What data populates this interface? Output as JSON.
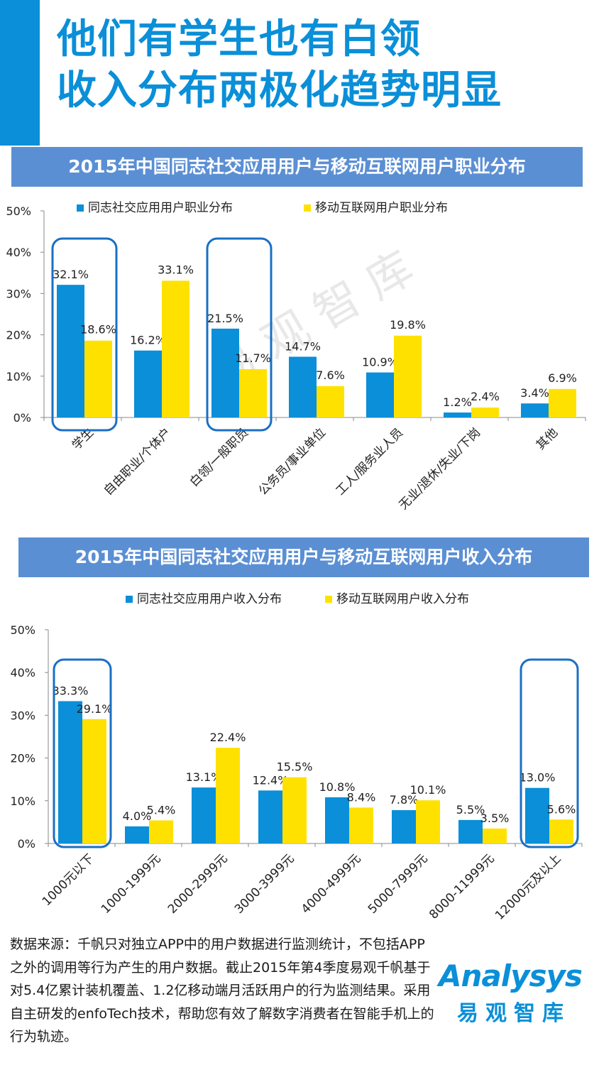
{
  "header": {
    "title_line1": "他们有学生也有白领",
    "title_line2": "收入分布两极化趋势明显",
    "title_color": "#0a8fd8",
    "accent_color": "#0a8fd8"
  },
  "colors": {
    "series_blue": "#0a8fd8",
    "series_yellow": "#ffe100",
    "banner_bg": "#5b8fd4",
    "highlight_box": "#1a6fc4",
    "watermark": "#e8e8e8"
  },
  "watermark": "易 观 智 库",
  "chart_data": [
    {
      "type": "bar",
      "title": "2015年中国同志社交应用用户与移动互联网用户职业分布",
      "categories": [
        "学生",
        "自由职业/个体户",
        "白领/一般职员",
        "公务员/事业单位",
        "工人/服务业人员",
        "无业/退休/失业/下岗",
        "其他"
      ],
      "series": [
        {
          "name": "同志社交应用用户职业分布",
          "values": [
            32.1,
            16.2,
            21.5,
            14.7,
            10.9,
            1.2,
            3.4
          ],
          "labels": [
            "32.1%",
            "16.2%",
            "21.5%",
            "14.7%",
            "10.9%",
            "1.2%",
            "3.4%"
          ]
        },
        {
          "name": "移动互联网用户职业分布",
          "values": [
            18.6,
            33.1,
            11.7,
            7.6,
            19.8,
            2.4,
            6.9
          ],
          "labels": [
            "18.6%",
            "33.1%",
            "11.7%",
            "7.6%",
            "19.8%",
            "2.4%",
            "6.9%"
          ]
        }
      ],
      "yticks": [
        "0%",
        "10%",
        "20%",
        "30%",
        "40%",
        "50%"
      ],
      "ylim": [
        0,
        50
      ],
      "highlighted_categories": [
        0,
        2
      ],
      "legend": "top",
      "grid": false
    },
    {
      "type": "bar",
      "title": "2015年中国同志社交应用用户与移动互联网用户收入分布",
      "categories": [
        "1000元以下",
        "1000-1999元",
        "2000-2999元",
        "3000-3999元",
        "4000-4999元",
        "5000-7999元",
        "8000-11999元",
        "12000元及以上"
      ],
      "series": [
        {
          "name": "同志社交应用用户收入分布",
          "values": [
            33.3,
            4.0,
            13.1,
            12.4,
            10.8,
            7.8,
            5.5,
            13.0
          ],
          "labels": [
            "33.3%",
            "4.0%",
            "13.1%",
            "12.4%",
            "10.8%",
            "7.8%",
            "5.5%",
            "13.0%"
          ]
        },
        {
          "name": "移动互联网用户收入分布",
          "values": [
            29.1,
            5.4,
            22.4,
            15.5,
            8.4,
            10.1,
            3.5,
            5.6
          ],
          "labels": [
            "29.1%",
            "5.4%",
            "22.4%",
            "15.5%",
            "8.4%",
            "10.1%",
            "3.5%",
            "5.6%"
          ]
        }
      ],
      "yticks": [
        "0%",
        "10%",
        "20%",
        "30%",
        "40%",
        "50%"
      ],
      "ylim": [
        0,
        50
      ],
      "highlighted_categories": [
        0,
        7
      ],
      "legend": "top",
      "grid": false
    }
  ],
  "footer": {
    "source_text": "数据来源：千帆只对独立APP中的用户数据进行监测统计，不包括APP之外的调用等行为产生的用户数据。截止2015年第4季度易观千帆基于对5.4亿累计装机覆盖、1.2亿移动端月活跃用户的行为监测结果。采用自主研发的enfoTech技术，帮助您有效了解数字消费者在智能手机上的行为轨迹。",
    "logo_word": "Analysys",
    "logo_cn": "易观智库",
    "logo_color": "#0a8fd8"
  }
}
